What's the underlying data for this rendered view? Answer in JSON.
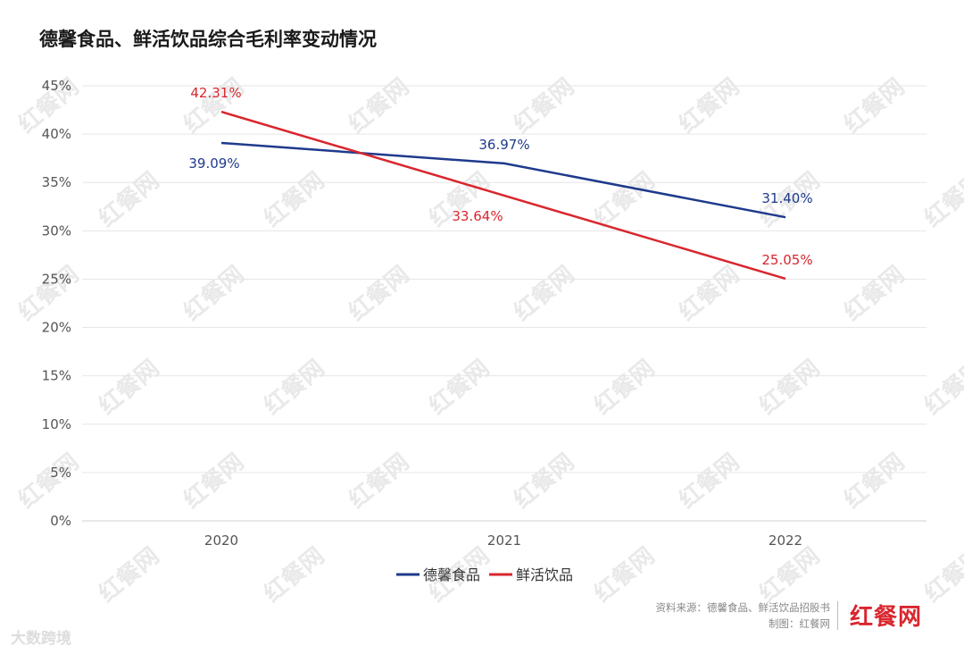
{
  "chart_data": {
    "type": "line",
    "title": "德馨食品、鲜活饮品综合毛利率变动情况",
    "categories": [
      "2020",
      "2021",
      "2022"
    ],
    "ylim": [
      0,
      45
    ],
    "yticks": [
      0,
      5,
      10,
      15,
      20,
      25,
      30,
      35,
      40,
      45
    ],
    "ytick_suffix": "%",
    "grid": true,
    "legend_position": "bottom-center",
    "series": [
      {
        "name": "德馨食品",
        "color": "#1f3a8c",
        "values": [
          39.09,
          36.97,
          31.4
        ],
        "labels": [
          "39.09%",
          "36.97%",
          "31.40%"
        ]
      },
      {
        "name": "鲜活饮品",
        "color": "#d9262e",
        "values": [
          42.31,
          33.64,
          25.05
        ],
        "labels": [
          "42.31%",
          "33.64%",
          "25.05%"
        ]
      }
    ]
  },
  "footer": {
    "source": "资料来源：德馨食品、鲜活饮品招股书",
    "credit": "制图：红餐网",
    "brand": "红餐网",
    "corner_mark": "大数跨境"
  },
  "watermark": "红餐网"
}
